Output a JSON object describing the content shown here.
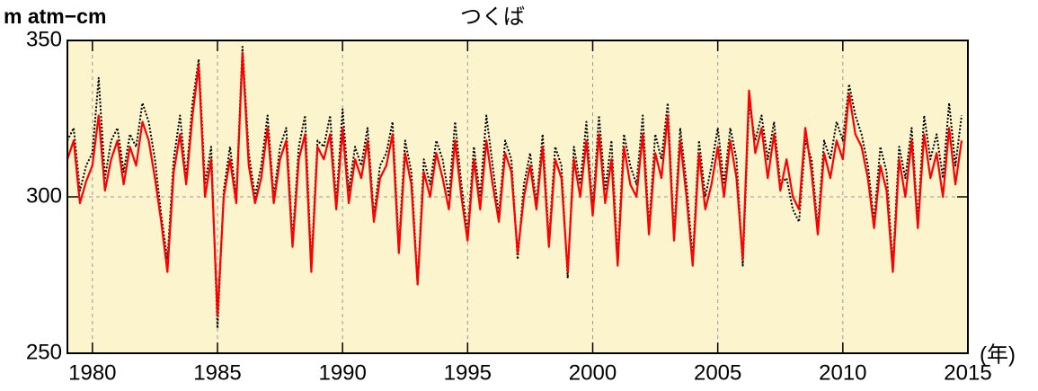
{
  "chart_data": {
    "type": "line",
    "title": "つくば",
    "y_label": "m atm−cm",
    "x_label": "(年)",
    "x": [
      1979,
      1979.25,
      1979.5,
      1979.75,
      1980,
      1980.25,
      1980.5,
      1980.75,
      1981,
      1981.25,
      1981.5,
      1981.75,
      1982,
      1982.25,
      1982.5,
      1982.75,
      1983,
      1983.25,
      1983.5,
      1983.75,
      1984,
      1984.25,
      1984.5,
      1984.75,
      1985,
      1985.25,
      1985.5,
      1985.75,
      1986,
      1986.25,
      1986.5,
      1986.75,
      1987,
      1987.25,
      1987.5,
      1987.75,
      1988,
      1988.25,
      1988.5,
      1988.75,
      1989,
      1989.25,
      1989.5,
      1989.75,
      1990,
      1990.25,
      1990.5,
      1990.75,
      1991,
      1991.25,
      1991.5,
      1991.75,
      1992,
      1992.25,
      1992.5,
      1992.75,
      1993,
      1993.25,
      1993.5,
      1993.75,
      1994,
      1994.25,
      1994.5,
      1994.75,
      1995,
      1995.25,
      1995.5,
      1995.75,
      1996,
      1996.25,
      1996.5,
      1996.75,
      1997,
      1997.25,
      1997.5,
      1997.75,
      1998,
      1998.25,
      1998.5,
      1998.75,
      1999,
      1999.25,
      1999.5,
      1999.75,
      2000,
      2000.25,
      2000.5,
      2000.75,
      2001,
      2001.25,
      2001.5,
      2001.75,
      2002,
      2002.25,
      2002.5,
      2002.75,
      2003,
      2003.25,
      2003.5,
      2003.75,
      2004,
      2004.25,
      2004.5,
      2004.75,
      2005,
      2005.25,
      2005.5,
      2005.75,
      2006,
      2006.25,
      2006.5,
      2006.75,
      2007,
      2007.25,
      2007.5,
      2007.75,
      2008,
      2008.25,
      2008.5,
      2008.75,
      2009,
      2009.25,
      2009.5,
      2009.75,
      2010,
      2010.25,
      2010.5,
      2010.75,
      2011,
      2011.25,
      2011.5,
      2011.75,
      2012,
      2012.25,
      2012.5,
      2012.75,
      2013,
      2013.25,
      2013.5,
      2013.75,
      2014,
      2014.25,
      2014.5,
      2014.75
    ],
    "series": [
      {
        "color": "#000000",
        "dashed": true,
        "values": [
          318,
          322,
          302,
          310,
          314,
          338,
          306,
          318,
          322,
          308,
          320,
          316,
          330,
          324,
          312,
          294,
          280,
          312,
          326,
          306,
          330,
          344,
          304,
          316,
          258,
          302,
          316,
          300,
          348,
          314,
          300,
          310,
          326,
          300,
          316,
          322,
          286,
          316,
          326,
          278,
          318,
          316,
          326,
          298,
          328,
          302,
          316,
          310,
          322,
          294,
          310,
          314,
          324,
          284,
          318,
          308,
          272,
          312,
          304,
          318,
          312,
          300,
          324,
          304,
          288,
          316,
          300,
          326,
          310,
          294,
          318,
          312,
          280,
          304,
          314,
          298,
          320,
          286,
          316,
          310,
          274,
          316,
          304,
          324,
          296,
          326,
          302,
          318,
          280,
          320,
          310,
          304,
          326,
          290,
          320,
          312,
          330,
          288,
          322,
          304,
          280,
          318,
          300,
          310,
          322,
          304,
          322,
          312,
          278,
          330,
          318,
          326,
          312,
          324,
          304,
          306,
          296,
          292,
          318,
          312,
          290,
          318,
          312,
          324,
          318,
          336,
          326,
          320,
          310,
          292,
          316,
          308,
          278,
          316,
          306,
          322,
          292,
          326,
          312,
          320,
          306,
          330,
          310,
          326
        ]
      },
      {
        "color": "#ff0000",
        "dashed": false,
        "values": [
          312,
          318,
          298,
          305,
          310,
          326,
          302,
          312,
          318,
          304,
          316,
          310,
          324,
          318,
          306,
          292,
          276,
          308,
          320,
          304,
          326,
          342,
          300,
          312,
          262,
          300,
          312,
          298,
          346,
          310,
          298,
          306,
          322,
          298,
          312,
          318,
          284,
          312,
          320,
          276,
          316,
          312,
          320,
          296,
          322,
          298,
          312,
          306,
          318,
          292,
          306,
          310,
          320,
          282,
          314,
          304,
          272,
          308,
          300,
          314,
          306,
          296,
          318,
          300,
          286,
          312,
          296,
          318,
          304,
          292,
          314,
          308,
          282,
          300,
          310,
          296,
          316,
          284,
          312,
          306,
          276,
          312,
          300,
          318,
          294,
          320,
          298,
          312,
          278,
          316,
          304,
          300,
          320,
          288,
          314,
          306,
          326,
          286,
          318,
          300,
          278,
          314,
          296,
          304,
          316,
          300,
          318,
          306,
          280,
          334,
          314,
          322,
          306,
          320,
          302,
          312,
          300,
          296,
          322,
          308,
          288,
          314,
          306,
          318,
          312,
          333,
          320,
          316,
          306,
          290,
          310,
          302,
          276,
          312,
          300,
          318,
          290,
          320,
          306,
          314,
          300,
          322,
          304,
          318
        ]
      }
    ],
    "xlim": [
      1979,
      2015
    ],
    "ylim": [
      250,
      350
    ],
    "xticks": [
      1980,
      1985,
      1990,
      1995,
      2000,
      2005,
      2010,
      2015
    ],
    "yticks": [
      250,
      300,
      350
    ],
    "grid": true
  }
}
